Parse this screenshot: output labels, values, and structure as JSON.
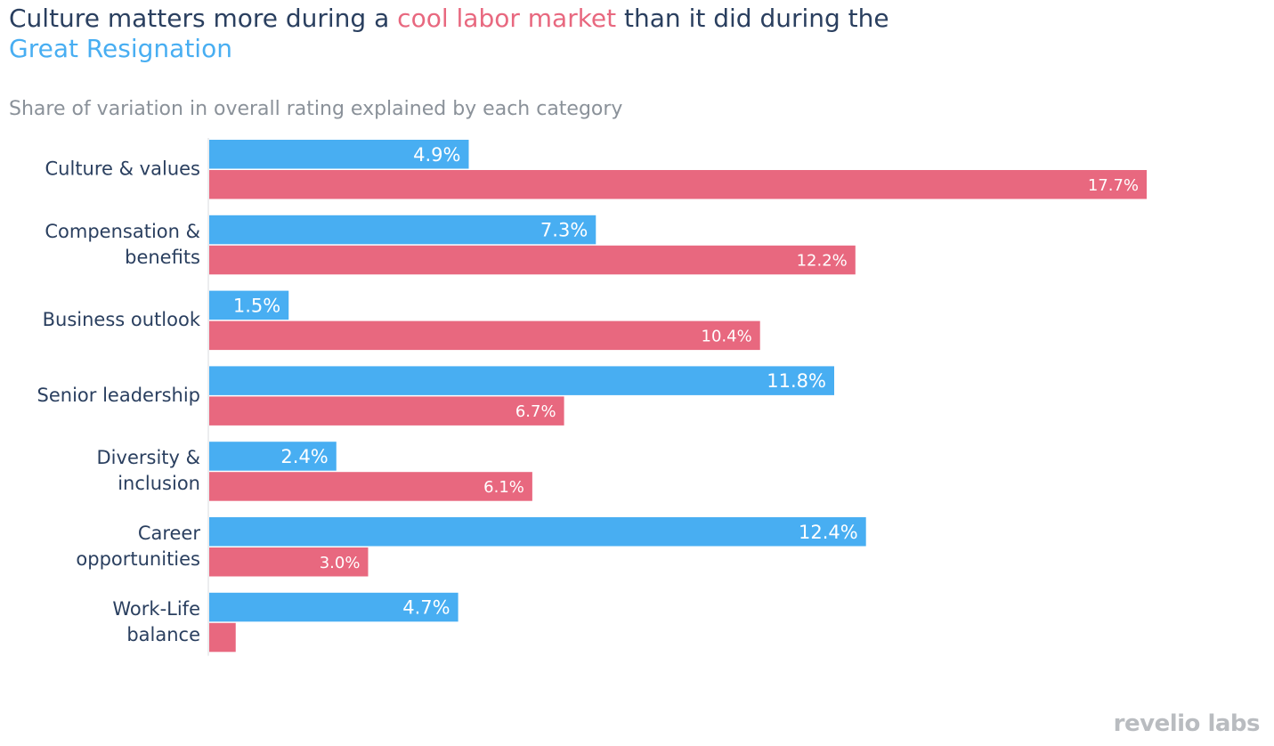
{
  "title": {
    "part1": "Culture matters more during a ",
    "part2": "cool labor market",
    "part3": " than it did during the",
    "part4": "Great Resignation"
  },
  "subtitle": "Share of variation in overall rating explained by each category",
  "logo": "revelio labs",
  "colors": {
    "great_resignation": "#48aef2",
    "cool_market": "#e8687f",
    "text": "#2a3f5f"
  },
  "chart_data": {
    "type": "bar",
    "orientation": "horizontal",
    "title": "Culture matters more during a cool labor market than it did during the Great Resignation",
    "subtitle": "Share of variation in overall rating explained by each category",
    "categories": [
      [
        "Culture & values"
      ],
      [
        "Compensation &",
        "benefits"
      ],
      [
        "Business outlook"
      ],
      [
        "Senior leadership"
      ],
      [
        "Diversity &",
        "inclusion"
      ],
      [
        "Career",
        "opportunities"
      ],
      [
        "Work-Life",
        "balance"
      ]
    ],
    "series": [
      {
        "name": "Great Resignation",
        "color": "#48aef2",
        "values": [
          4.9,
          7.3,
          1.5,
          11.8,
          2.4,
          12.4,
          4.7
        ],
        "labels": [
          "4.9%",
          "7.3%",
          "1.5%",
          "11.8%",
          "2.4%",
          "12.4%",
          "4.7%"
        ]
      },
      {
        "name": "cool labor market",
        "color": "#e8687f",
        "values": [
          17.7,
          12.2,
          10.4,
          6.7,
          6.1,
          3.0,
          0.5
        ],
        "labels": [
          "17.7%",
          "12.2%",
          "10.4%",
          "6.7%",
          "6.1%",
          "3.0%",
          ""
        ]
      }
    ],
    "xlim": [
      0,
      17.7
    ]
  }
}
